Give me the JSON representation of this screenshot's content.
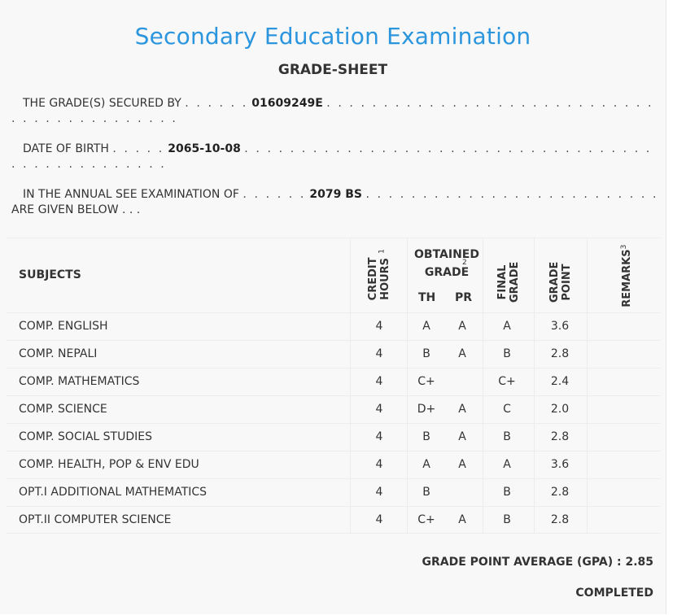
{
  "header": {
    "title": "Secondary Education Examination",
    "subtitle": "GRADE-SHEET"
  },
  "info": {
    "secured_by_label": "THE GRADE(S) SECURED BY",
    "symbol_no": "01609249E",
    "dob_label": "DATE OF BIRTH",
    "dob": "2065-10-08",
    "exam_label": "IN THE ANNUAL SEE EXAMINATION OF",
    "exam_year": "2079 BS",
    "given_below": "ARE GIVEN BELOW . . .",
    "dots_short": ". . . . . .",
    "dots_dob_short": ". . . . .",
    "dots_long_1": ". . . . . . . . . . . . . . . . . . . . . . . . . . . . . . . . . . . . . . . . . . . . . . . . . .",
    "dots_long_2": ". . . . . . . . . . . . . . . . . . . . . . . . . . . . . . . . . . . . . . . . . . . . . . . . . . . . . .",
    "dots_long_3": ". . . . . . . . . . . . . . . . . . . . . . . . . . . . . . . . . . . . . . . . . . . . . . .",
    "dots_wrap_1": ". . . . . . . . . . . . . . .",
    "dots_wrap_2": ". . . . . . . . . . . . . ."
  },
  "table": {
    "headers": {
      "subjects": "SUBJECTS",
      "credit_hours": "CREDIT HOURS",
      "credit_hours_sup": "1",
      "obtained_grade": "OBTAINED GRADE",
      "obtained_grade_sup": "2",
      "th": "TH",
      "pr": "PR",
      "final_grade": "FINAL GRADE",
      "grade_point": "GRADE POINT",
      "remarks": "REMARKS",
      "remarks_sup": "3"
    },
    "rows": [
      {
        "subject": "COMP. ENGLISH",
        "credit": "4",
        "th": "A",
        "pr": "A",
        "final": "A",
        "gp": "3.6"
      },
      {
        "subject": "COMP. NEPALI",
        "credit": "4",
        "th": "B",
        "pr": "A",
        "final": "B",
        "gp": "2.8"
      },
      {
        "subject": "COMP. MATHEMATICS",
        "credit": "4",
        "th": "C+",
        "pr": "",
        "final": "C+",
        "gp": "2.4"
      },
      {
        "subject": "COMP. SCIENCE",
        "credit": "4",
        "th": "D+",
        "pr": "A",
        "final": "C",
        "gp": "2.0"
      },
      {
        "subject": "COMP. SOCIAL STUDIES",
        "credit": "4",
        "th": "B",
        "pr": "A",
        "final": "B",
        "gp": "2.8"
      },
      {
        "subject": "COMP. HEALTH, POP & ENV EDU",
        "credit": "4",
        "th": "A",
        "pr": "A",
        "final": "A",
        "gp": "3.6"
      },
      {
        "subject": "OPT.I ADDITIONAL MATHEMATICS",
        "credit": "4",
        "th": "B",
        "pr": "",
        "final": "B",
        "gp": "2.8"
      },
      {
        "subject": "OPT.II COMPUTER SCIENCE",
        "credit": "4",
        "th": "C+",
        "pr": "A",
        "final": "B",
        "gp": "2.8"
      }
    ]
  },
  "summary": {
    "gpa_label": "GRADE POINT AVERAGE (GPA) : 2.85",
    "status": "COMPLETED"
  }
}
